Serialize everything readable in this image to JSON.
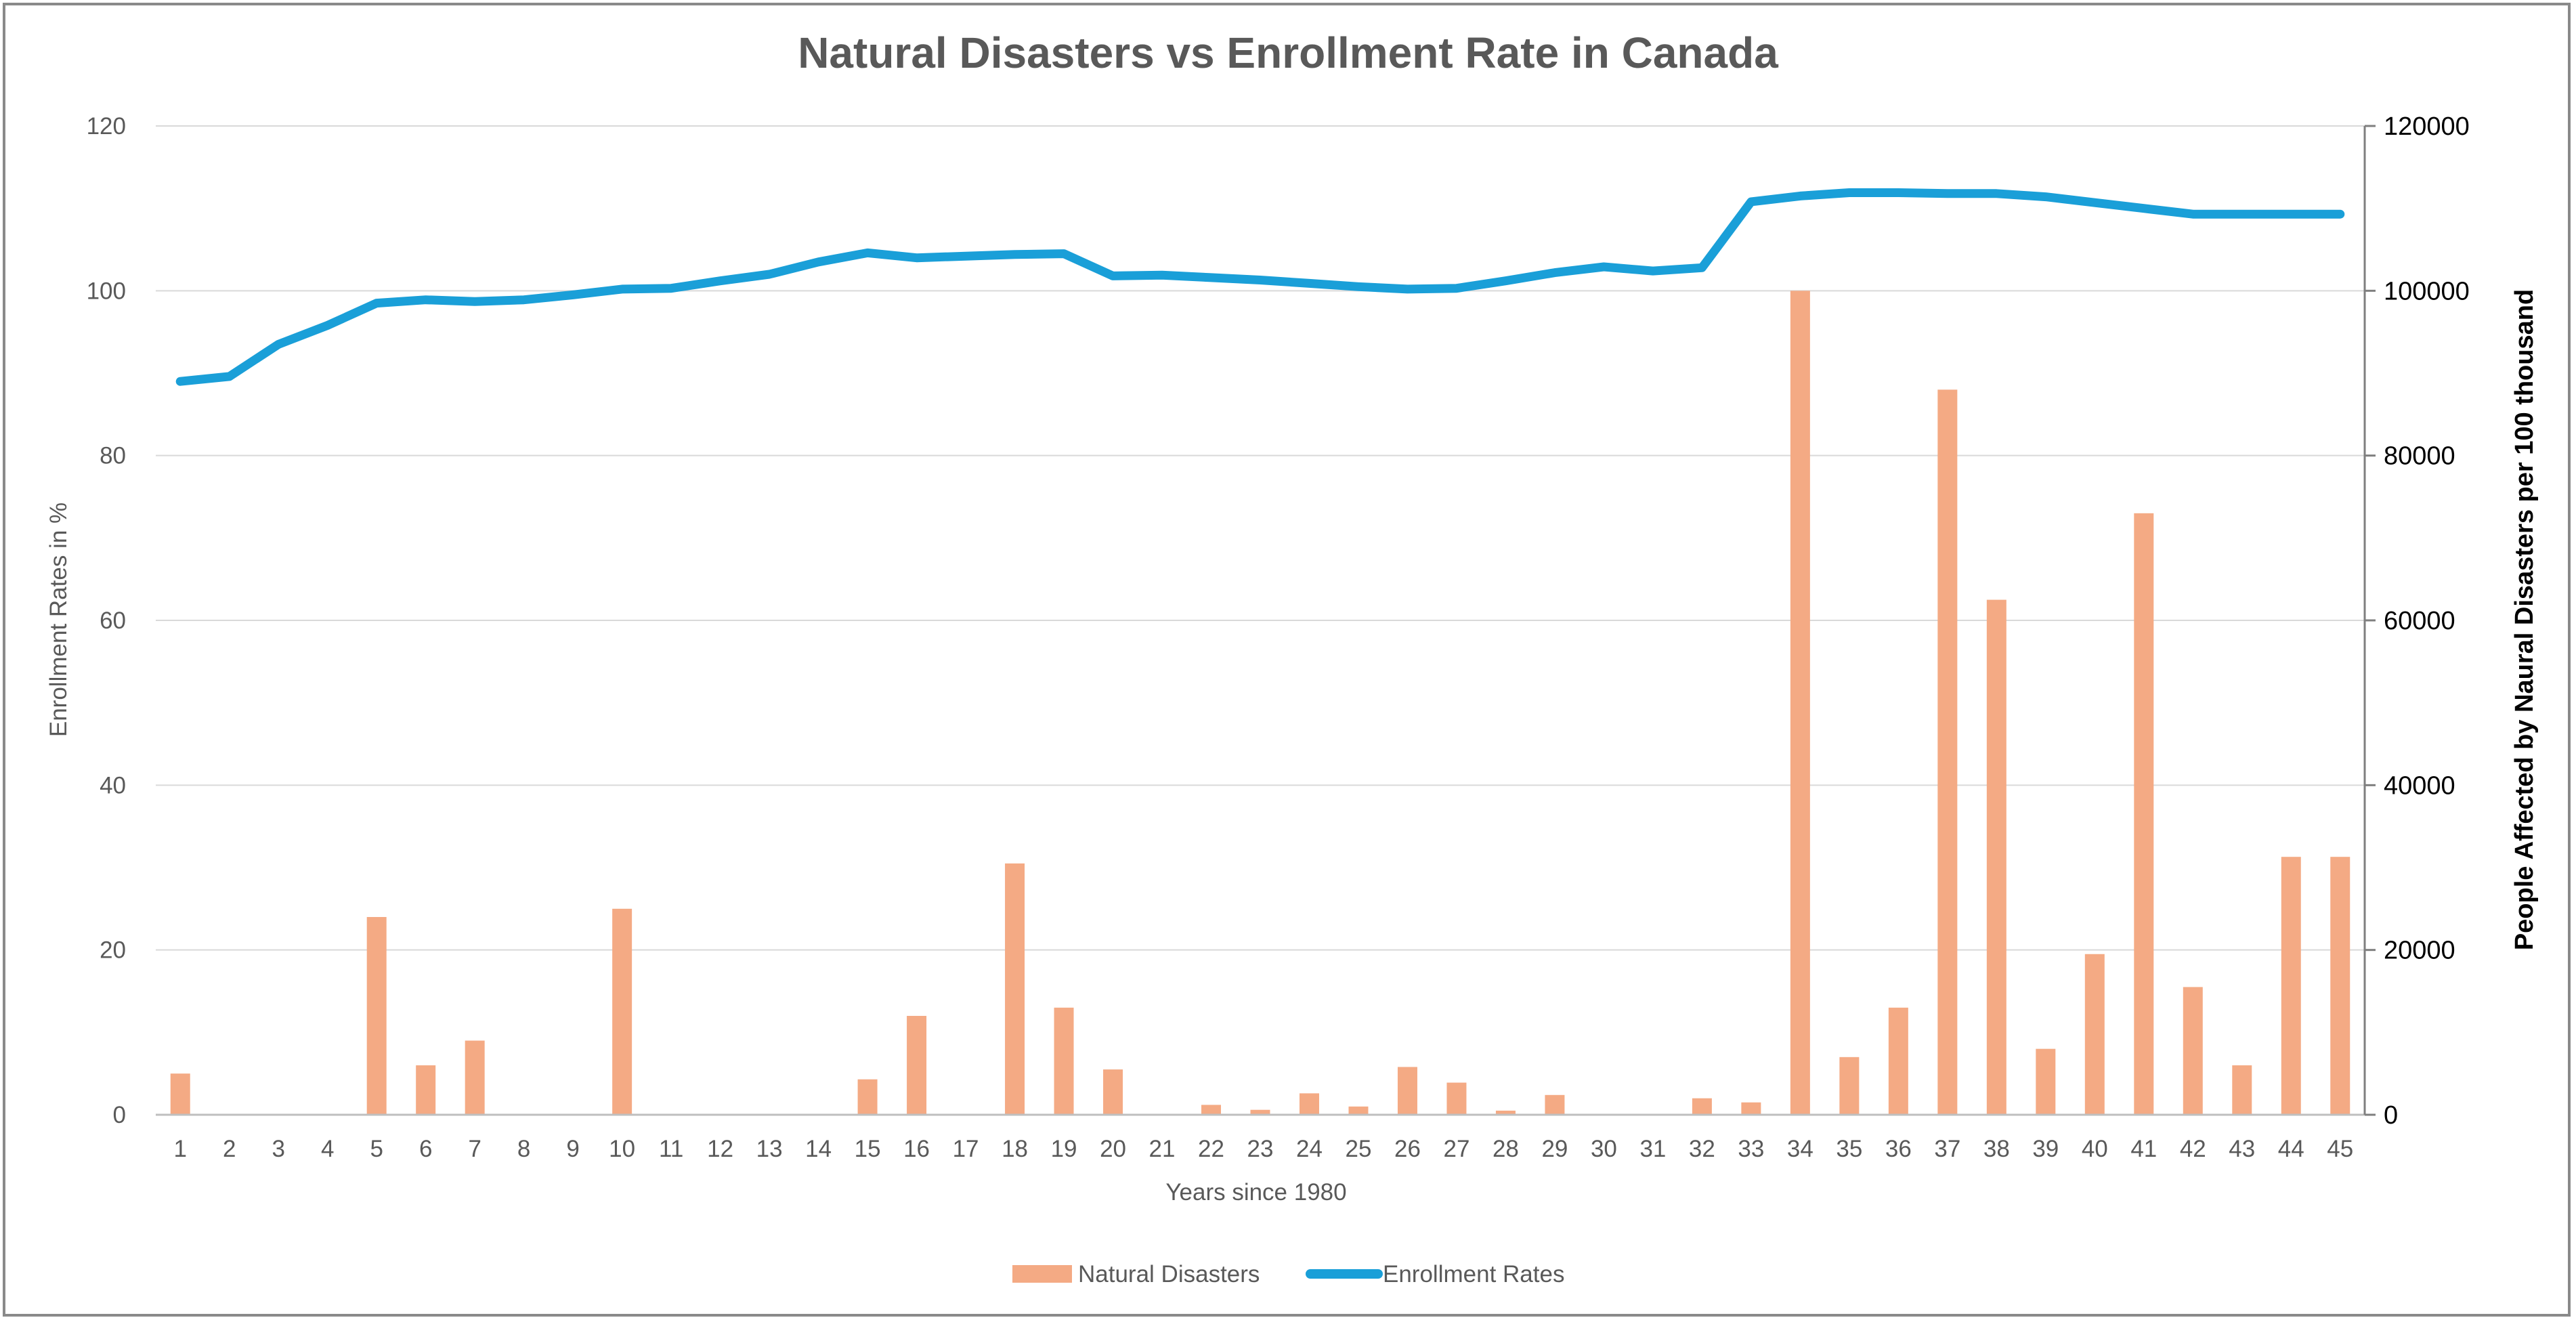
{
  "chart_data": {
    "type": "bar+line",
    "title": "Natural Disasters vs Enrollment Rate in Canada",
    "xlabel": "Years since 1980",
    "ylabel_left": "Enrollment Rates in %",
    "ylabel_right": "People Affected by Naural Disasters per 100 thousand",
    "ylim_left": [
      0,
      120
    ],
    "ylim_right": [
      0,
      120000
    ],
    "yticks_left": [
      "0",
      "20",
      "40",
      "60",
      "80",
      "100",
      "120"
    ],
    "yticks_right": [
      "0",
      "20000",
      "40000",
      "60000",
      "80000",
      "100000",
      "120000"
    ],
    "categories": [
      "1",
      "2",
      "3",
      "4",
      "5",
      "6",
      "7",
      "8",
      "9",
      "10",
      "11",
      "12",
      "13",
      "14",
      "15",
      "16",
      "17",
      "18",
      "19",
      "20",
      "21",
      "22",
      "23",
      "24",
      "25",
      "26",
      "27",
      "28",
      "29",
      "30",
      "31",
      "32",
      "33",
      "34",
      "35",
      "36",
      "37",
      "38",
      "39",
      "40",
      "41",
      "42",
      "43",
      "44",
      "45"
    ],
    "grid": true,
    "legend_position": "bottom",
    "series": [
      {
        "name": "Natural Disasters",
        "type": "bar",
        "axis": "right",
        "color": "#F4AA84",
        "values": [
          5000,
          0,
          0,
          0,
          24000,
          6000,
          9000,
          0,
          0,
          25000,
          0,
          0,
          0,
          0,
          4300,
          12000,
          0,
          30500,
          13000,
          5500,
          0,
          1200,
          600,
          2600,
          1000,
          5800,
          3900,
          500,
          2400,
          0,
          0,
          2000,
          1500,
          100000,
          7000,
          13000,
          88000,
          62500,
          8000,
          19500,
          73000,
          15500,
          6000,
          31300,
          31300
        ]
      },
      {
        "name": "Enrollment Rates",
        "type": "line",
        "axis": "left",
        "color": "#1A9FD8",
        "values": [
          89.0,
          89.6,
          93.5,
          95.8,
          98.5,
          98.9,
          98.7,
          98.9,
          99.5,
          100.2,
          100.3,
          101.2,
          102.0,
          103.5,
          104.6,
          104.0,
          104.2,
          104.4,
          104.5,
          101.8,
          101.9,
          101.6,
          101.3,
          100.9,
          100.5,
          100.2,
          100.3,
          101.2,
          102.2,
          102.9,
          102.4,
          102.8,
          110.8,
          111.5,
          111.9,
          111.9,
          111.8,
          111.8,
          111.4,
          110.7,
          110.0,
          109.3,
          109.3,
          109.3,
          109.3
        ]
      }
    ]
  }
}
